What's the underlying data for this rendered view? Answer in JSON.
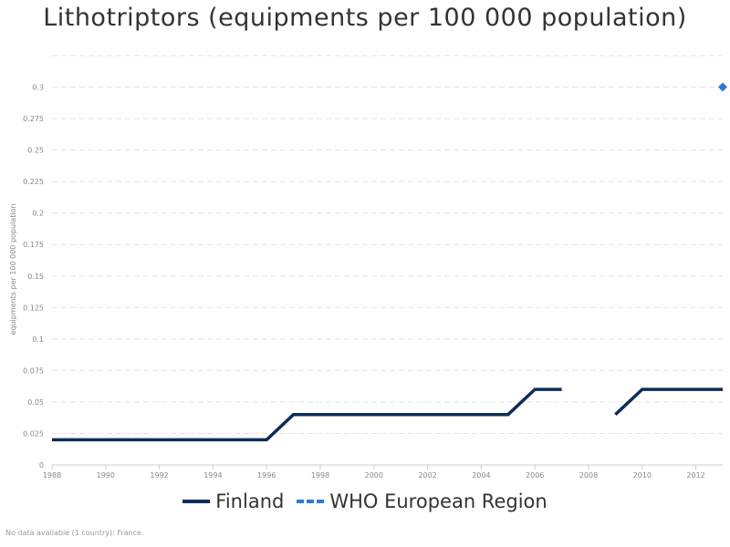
{
  "chart_data": {
    "type": "line",
    "title": "Lithotriptors (equipments per 100 000 population)",
    "ylabel": "equipments per 100 000 population",
    "xlabel": "",
    "xlim": [
      1988,
      2013
    ],
    "ylim": [
      0,
      0.325
    ],
    "x_ticks": [
      1988,
      1990,
      1992,
      1994,
      1996,
      1998,
      2000,
      2002,
      2004,
      2006,
      2008,
      2010,
      2012
    ],
    "y_ticks": [
      0,
      0.025,
      0.05,
      0.075,
      0.1,
      0.125,
      0.15,
      0.175,
      0.2,
      0.225,
      0.25,
      0.275,
      0.3
    ],
    "grid": "horizontal dashed",
    "legend_position": "bottom",
    "series": [
      {
        "name": "Finland",
        "style": "solid",
        "color": "#0c2d57",
        "points": [
          [
            1988,
            0.02
          ],
          [
            1989,
            0.02
          ],
          [
            1990,
            0.02
          ],
          [
            1991,
            0.02
          ],
          [
            1992,
            0.02
          ],
          [
            1993,
            0.02
          ],
          [
            1994,
            0.02
          ],
          [
            1995,
            0.02
          ],
          [
            1996,
            0.02
          ],
          [
            1997,
            0.04
          ],
          [
            1998,
            0.04
          ],
          [
            1999,
            0.04
          ],
          [
            2000,
            0.04
          ],
          [
            2001,
            0.04
          ],
          [
            2002,
            0.04
          ],
          [
            2003,
            0.04
          ],
          [
            2004,
            0.04
          ],
          [
            2005,
            0.04
          ],
          [
            2006,
            0.06
          ],
          [
            2007,
            0.06
          ],
          [
            2008,
            null
          ],
          [
            2009,
            0.04
          ],
          [
            2010,
            0.06
          ],
          [
            2011,
            0.06
          ],
          [
            2012,
            0.06
          ],
          [
            2013,
            0.06
          ]
        ]
      },
      {
        "name": "WHO European Region",
        "style": "dashed",
        "color": "#2b7bd6",
        "points": [
          [
            2013,
            0.3
          ]
        ]
      }
    ]
  },
  "footnote": "No data available (1 country): France."
}
